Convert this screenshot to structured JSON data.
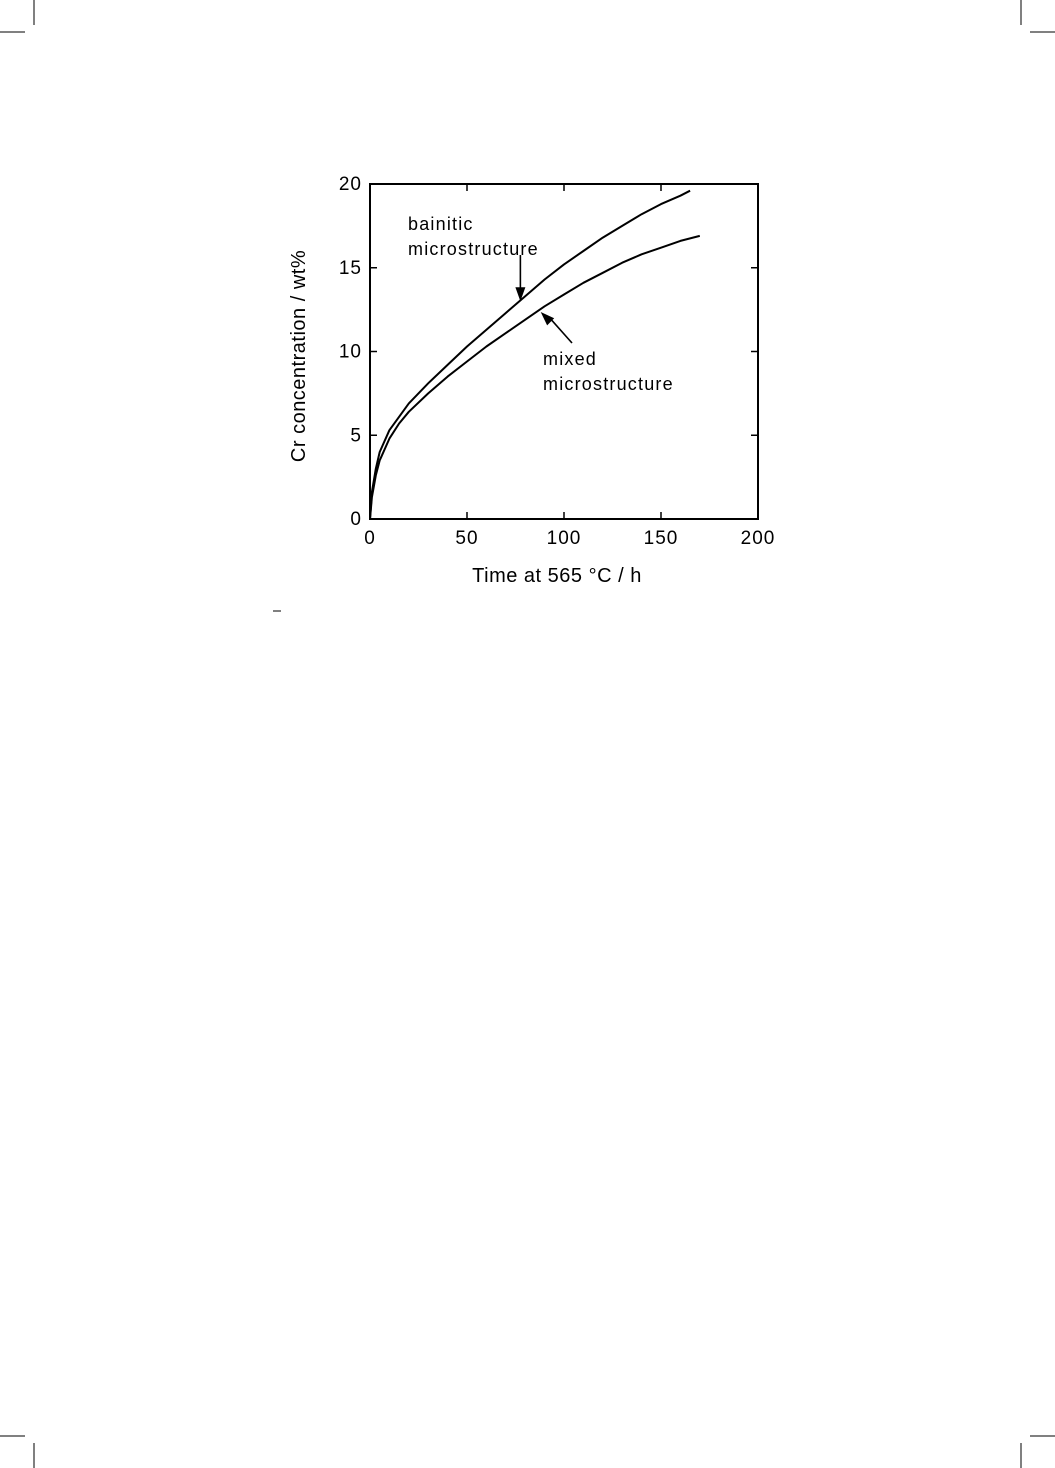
{
  "chart_data": {
    "type": "line",
    "title": "",
    "xlabel": "Time at 565 °C / h",
    "ylabel": "Cr concentration / wt%",
    "xlim": [
      0,
      200
    ],
    "ylim": [
      0,
      20
    ],
    "x_ticks": [
      0,
      50,
      100,
      150,
      200
    ],
    "y_ticks": [
      0,
      5,
      10,
      15,
      20
    ],
    "grid": false,
    "series": [
      {
        "x": [
          0,
          1,
          3,
          5,
          10,
          15,
          20,
          30,
          40,
          50,
          60,
          70,
          80,
          90,
          100,
          110,
          120,
          130,
          140,
          150,
          160,
          165
        ],
        "y": [
          0,
          1.6,
          3.0,
          4.0,
          5.3,
          6.1,
          6.9,
          8.1,
          9.2,
          10.3,
          11.3,
          12.3,
          13.3,
          14.3,
          15.2,
          16.0,
          16.8,
          17.5,
          18.2,
          18.8,
          19.3,
          19.6
        ]
      },
      {
        "x": [
          0,
          1,
          3,
          5,
          10,
          15,
          20,
          30,
          40,
          50,
          60,
          70,
          80,
          90,
          100,
          110,
          120,
          130,
          140,
          150,
          160,
          170
        ],
        "y": [
          0,
          1.3,
          2.6,
          3.5,
          4.8,
          5.7,
          6.4,
          7.5,
          8.5,
          9.4,
          10.3,
          11.1,
          11.9,
          12.7,
          13.4,
          14.1,
          14.7,
          15.3,
          15.8,
          16.2,
          16.6,
          16.9
        ]
      }
    ],
    "annotations": [
      {
        "lines": [
          "bainitic",
          "microstructure"
        ],
        "target_series": 0,
        "target_x": 77
      },
      {
        "lines": [
          "mixed",
          "microstructure"
        ],
        "target_series": 1,
        "target_x": 88
      }
    ]
  }
}
